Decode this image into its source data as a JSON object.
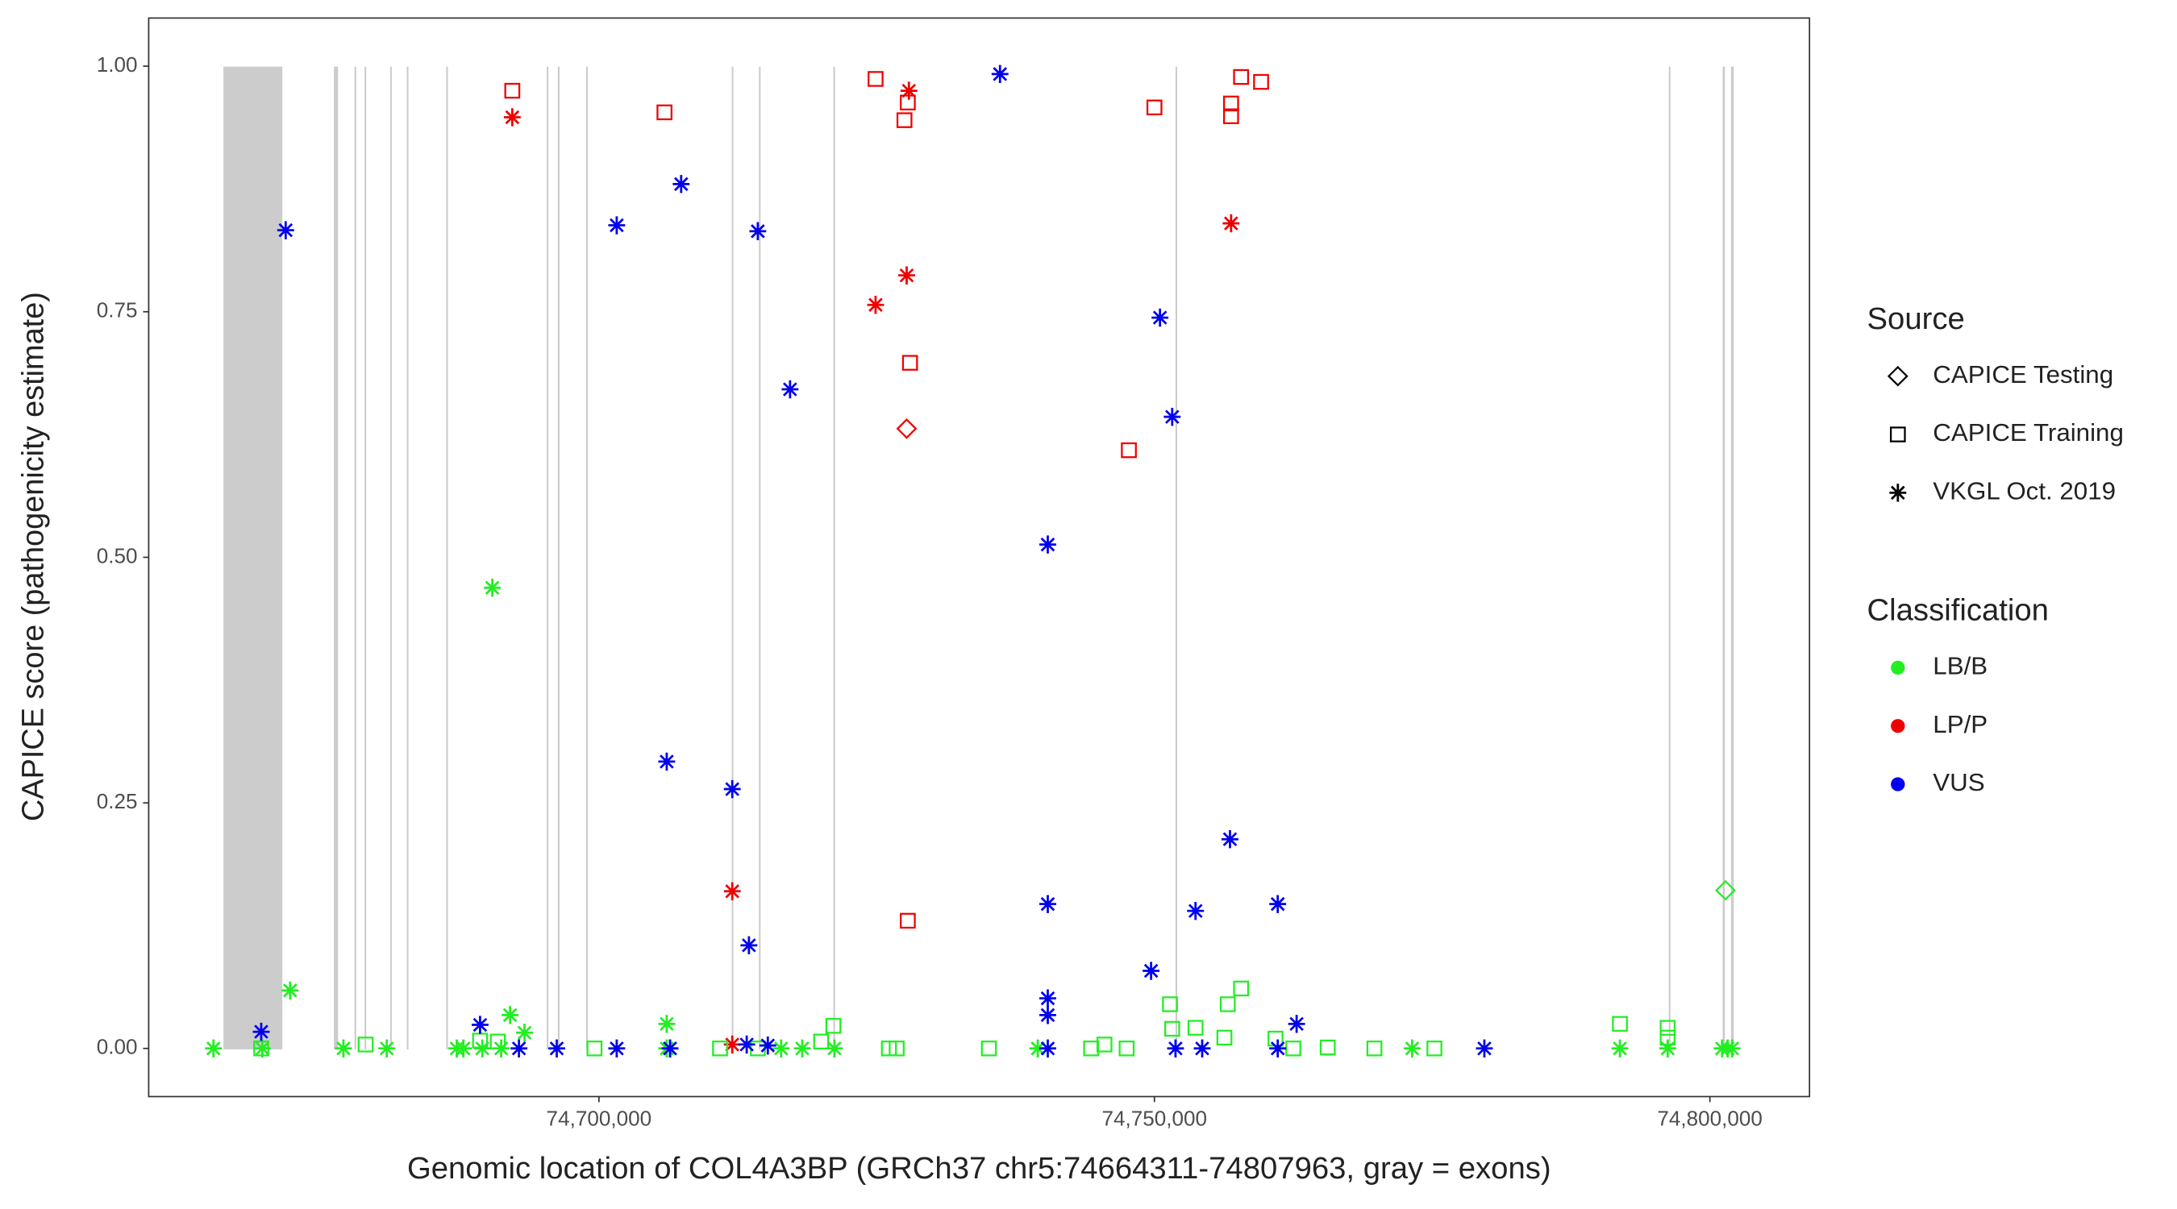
{
  "chart_data": {
    "type": "scatter",
    "x_label": "Genomic location of COL4A3BP (GRCh37 chr5:74664311-74807963, gray = exons)",
    "y_label": "CAPICE score (pathogenicity estimate)",
    "xlim": [
      74659470,
      74808965
    ],
    "ylim": [
      -0.049,
      1.049
    ],
    "xticks": [
      {
        "value": 74700000,
        "label": "74,700,000"
      },
      {
        "value": 74750000,
        "label": "74,750,000"
      },
      {
        "value": 74800000,
        "label": "74,800,000"
      }
    ],
    "yticks": [
      {
        "value": 0,
        "label": "0.00"
      },
      {
        "value": 0.25,
        "label": "0.25"
      },
      {
        "value": 0.5,
        "label": "0.50"
      },
      {
        "value": 0.75,
        "label": "0.75"
      },
      {
        "value": 1,
        "label": "1.00"
      }
    ],
    "exon_color": "#cccccc",
    "exons": [
      [
        74666200,
        74671500
      ],
      [
        74676140,
        74676520
      ],
      [
        74678000,
        74678150
      ],
      [
        74678900,
        74679050
      ],
      [
        74681200,
        74681350
      ],
      [
        74682700,
        74682850
      ],
      [
        74686250,
        74686400
      ],
      [
        74695300,
        74695450
      ],
      [
        74696300,
        74696450
      ],
      [
        74698850,
        74699000
      ],
      [
        74711950,
        74712100
      ],
      [
        74714400,
        74714550
      ],
      [
        74721100,
        74721250
      ],
      [
        74751900,
        74752050
      ],
      [
        74796300,
        74796450
      ],
      [
        74801150,
        74801350
      ],
      [
        74801900,
        74802150
      ]
    ],
    "legend_source": {
      "title": "Source",
      "items": [
        {
          "label": "CAPICE Testing",
          "shape": "diamond"
        },
        {
          "label": "CAPICE Training",
          "shape": "square"
        },
        {
          "label": "VKGL Oct. 2019",
          "shape": "star"
        }
      ]
    },
    "legend_class": {
      "title": "Classification",
      "items": [
        {
          "label": "LB/B",
          "color": "#22ee22"
        },
        {
          "label": "LP/P",
          "color": "#ee0000"
        },
        {
          "label": "VUS",
          "color": "#0000ee"
        }
      ]
    },
    "series": [
      {
        "source": 1,
        "class": 1,
        "x": [
          74692200,
          74705900,
          74724900,
          74727800,
          74727500,
          74728000,
          74727800,
          74747700,
          74750000,
          74756900,
          74756900,
          74757800,
          74759600
        ],
        "values": [
          0.975,
          0.953,
          0.987,
          0.963,
          0.945,
          0.698,
          0.13,
          0.609,
          0.958,
          0.962,
          0.949,
          0.989,
          0.984
        ]
      },
      {
        "source": 2,
        "class": 1,
        "x": [
          74692200,
          74727900,
          74727700,
          74724900,
          74756900,
          74712000,
          74712000
        ],
        "values": [
          0.948,
          0.975,
          0.787,
          0.757,
          0.84,
          0.16,
          0.004
        ]
      },
      {
        "source": 0,
        "class": 1,
        "x": [
          74727700
        ],
        "values": [
          0.631
        ]
      },
      {
        "source": 0,
        "class": 0,
        "x": [
          74801400
        ],
        "values": [
          0.161
        ]
      },
      {
        "source": 2,
        "class": 0,
        "x": [
          74690400,
          74672200,
          74692000,
          74706100,
          74693300,
          74665300,
          74669700,
          74677000,
          74680900,
          74687200,
          74687800,
          74689500,
          74691200,
          74706100,
          74706400,
          74716400,
          74718300,
          74721200,
          74739500,
          74773200,
          74791900,
          74796200,
          74801100,
          74801600,
          74802000
        ],
        "values": [
          0.469,
          0.059,
          0.034,
          0.025,
          0.016,
          0,
          0,
          0,
          0,
          0,
          0,
          0,
          0,
          0,
          0,
          0,
          0,
          0,
          0,
          0,
          0,
          0,
          0,
          0,
          0
        ]
      },
      {
        "source": 1,
        "class": 0,
        "x": [
          74669600,
          74679000,
          74689300,
          74690900,
          74699600,
          74710900,
          74714300,
          74720000,
          74721100,
          74726100,
          74726800,
          74735100,
          74744300,
          74745500,
          74747500,
          74751400,
          74751600,
          74753700,
          74756300,
          74756600,
          74757800,
          74760900,
          74762500,
          74765600,
          74769800,
          74775200,
          74791900,
          74796200,
          74796200
        ],
        "values": [
          0,
          0.004,
          0.008,
          0.007,
          0,
          0,
          0,
          0.007,
          0.023,
          0,
          0,
          0,
          0,
          0.004,
          0,
          0.045,
          0.02,
          0.021,
          0.011,
          0.045,
          0.061,
          0.01,
          0,
          0.001,
          0,
          0,
          0.025,
          0.021,
          0.011
        ]
      },
      {
        "source": 2,
        "class": 2,
        "x": [
          74736100,
          74671800,
          74707400,
          74701600,
          74714300,
          74717200,
          74750500,
          74751600,
          74740400,
          74706100,
          74712000,
          74713500,
          74740400,
          74756800,
          74753700,
          74761100,
          74749700,
          74740400,
          74740400,
          74762800,
          74689300,
          74669600,
          74692800,
          74696200,
          74701600,
          74706400,
          74713300,
          74715200,
          74740400,
          74751900,
          74754300,
          74761100,
          74779700
        ],
        "values": [
          0.992,
          0.833,
          0.88,
          0.838,
          0.832,
          0.671,
          0.744,
          0.643,
          0.513,
          0.292,
          0.264,
          0.105,
          0.147,
          0.213,
          0.14,
          0.147,
          0.079,
          0.051,
          0.034,
          0.025,
          0.024,
          0.017,
          0,
          0,
          0,
          0,
          0.004,
          0.003,
          0,
          0,
          0,
          0,
          0
        ]
      }
    ]
  }
}
